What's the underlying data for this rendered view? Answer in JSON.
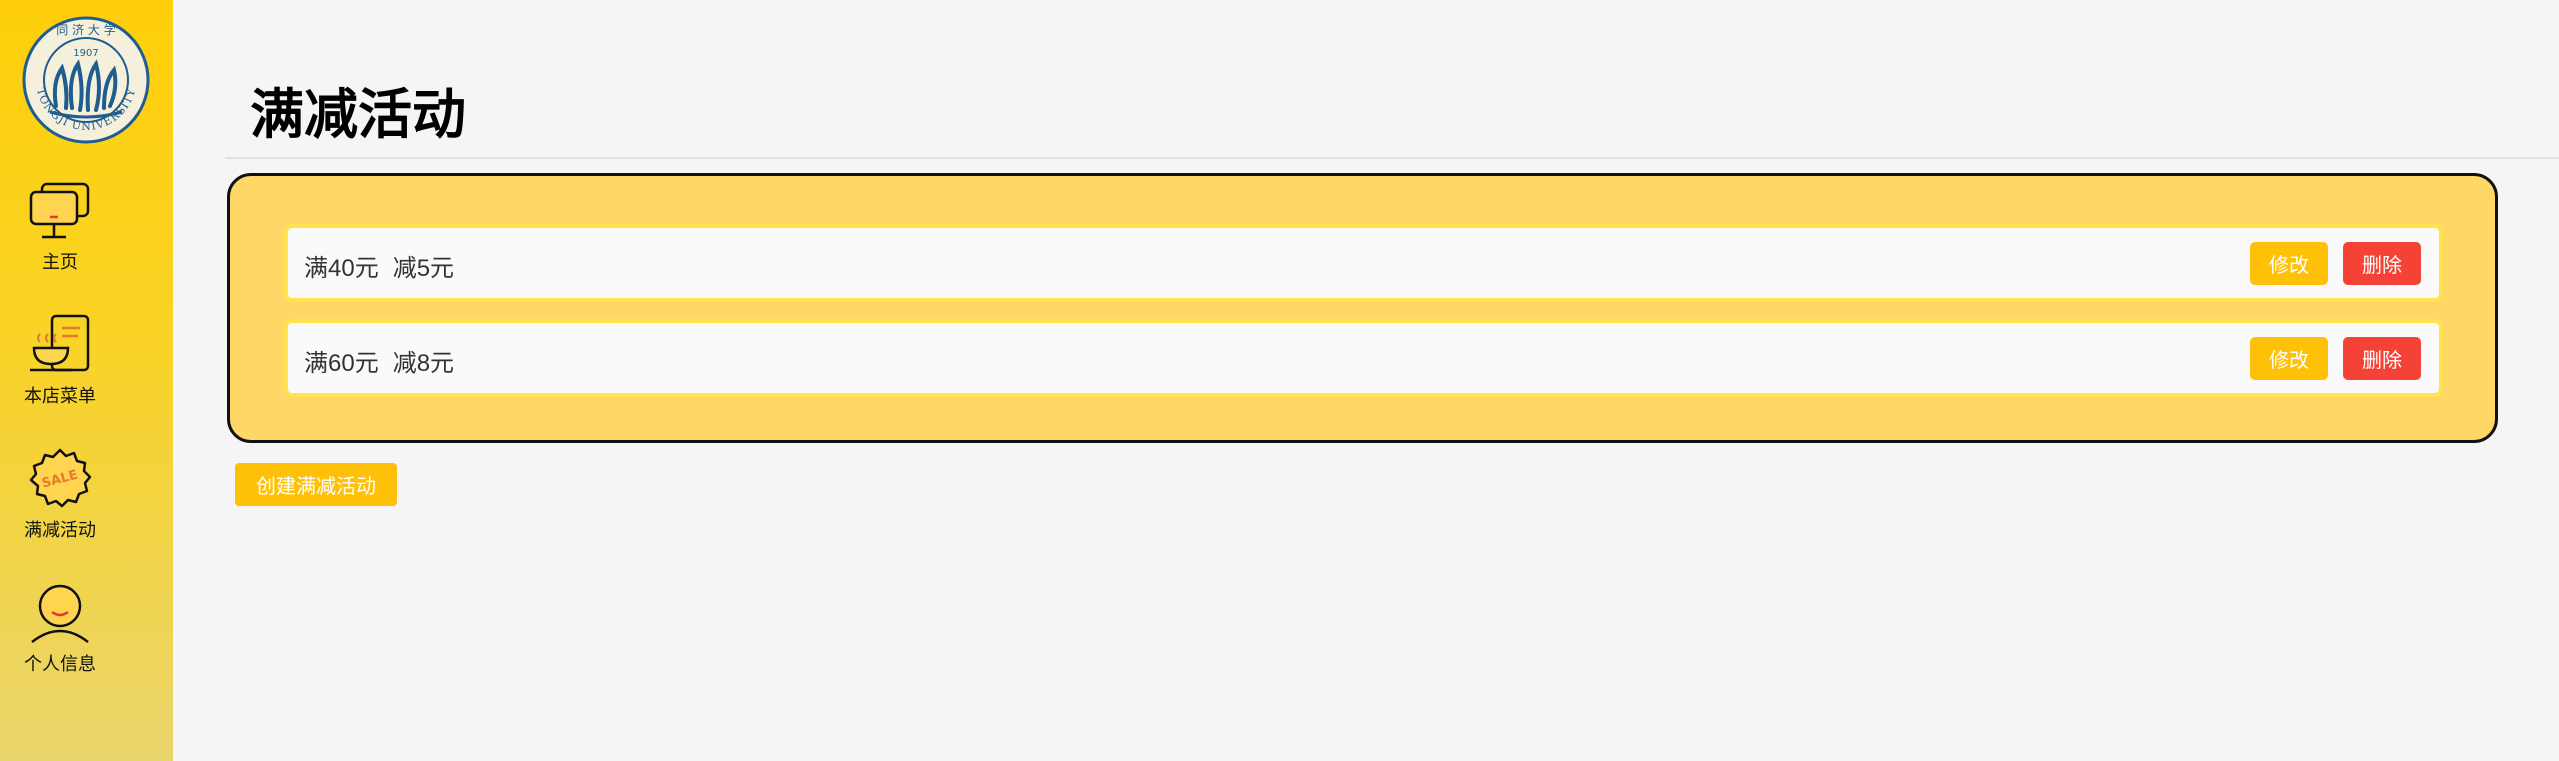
{
  "sidebar": {
    "logo": {
      "arc_text": "TONGJI UNIVERSITY",
      "top_text": "同 济 大 学",
      "year": "1907"
    },
    "items": [
      {
        "label": "主页",
        "icon": "monitor-icon"
      },
      {
        "label": "本店菜单",
        "icon": "menu-cup-icon"
      },
      {
        "label": "满减活动",
        "icon": "sale-badge-icon"
      },
      {
        "label": "个人信息",
        "icon": "user-icon"
      }
    ],
    "sale_icon_text": "SALE"
  },
  "main": {
    "title": "满减活动",
    "promotions": [
      {
        "threshold": "满40元",
        "discount": "减5元",
        "edit_label": "修改",
        "delete_label": "删除"
      },
      {
        "threshold": "满60元",
        "discount": "减8元",
        "edit_label": "修改",
        "delete_label": "删除"
      }
    ],
    "create_label": "创建满减活动"
  },
  "colors": {
    "sidebar_top": "#ffcf0a",
    "panel_bg": "#ffd766",
    "row_border": "#ffe44d",
    "edit_button": "#ffc107",
    "delete_button": "#f44336",
    "create_button": "#ffc107"
  }
}
